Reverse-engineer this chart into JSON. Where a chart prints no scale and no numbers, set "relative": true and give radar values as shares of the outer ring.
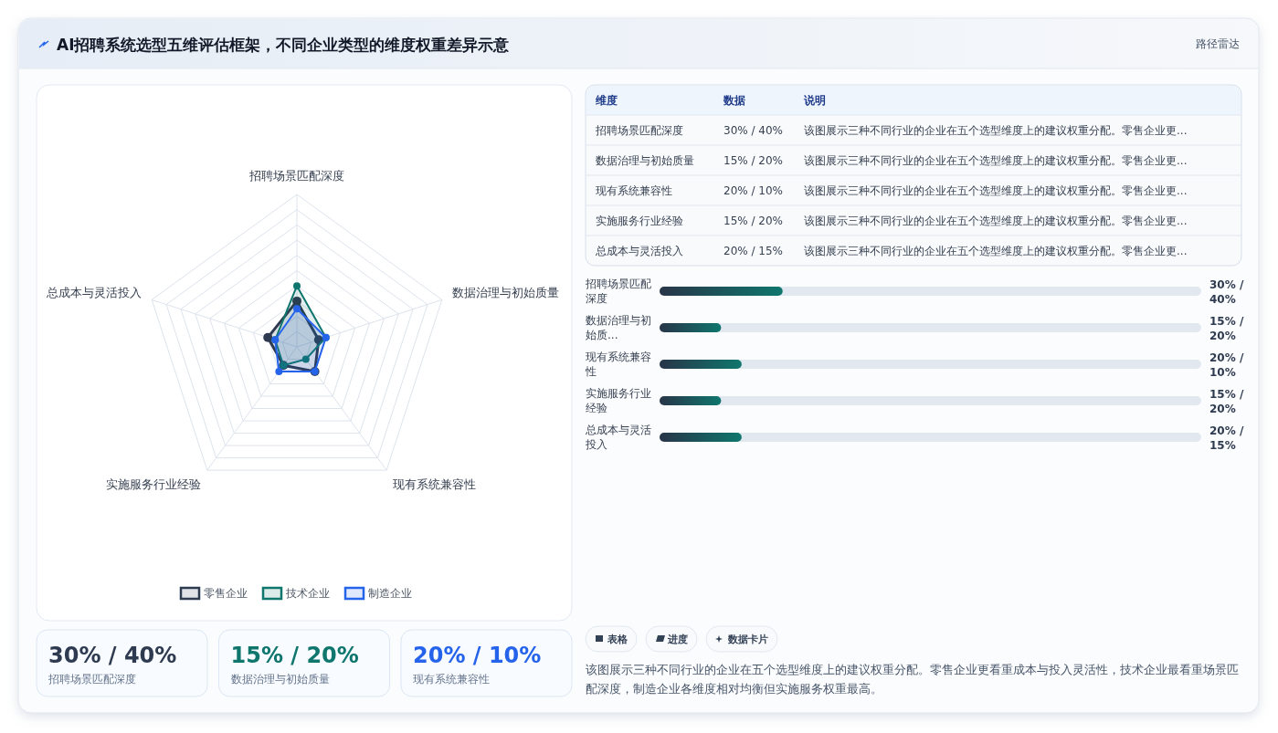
{
  "chart_data": [
    {
      "type": "other",
      "title": "AI招聘系统选型五维评估框架，不同企业类型的维度权重差异示意",
      "annotations": [
        "路径雷达"
      ]
    },
    {
      "type": "radar",
      "categories": [
        "招聘场景匹配深度",
        "数据治理与初始质量",
        "现有系统兼容性",
        "实施服务行业经验",
        "总成本与灵活投入"
      ],
      "relative": true,
      "legend": "bottom",
      "marker": "circle",
      "series": [
        {
          "name": "零售企业",
          "color": "#2d3a4f",
          "values": [
            0.3,
            0.15,
            0.2,
            0.15,
            0.2
          ]
        },
        {
          "name": "技术企业",
          "color": "#0f766e",
          "values": [
            0.4,
            0.2,
            0.1,
            0.15,
            0.15
          ]
        },
        {
          "name": "制造企业",
          "color": "#2563eb",
          "values": [
            0.25,
            0.2,
            0.2,
            0.2,
            0.15
          ]
        }
      ]
    },
    {
      "type": "other",
      "categories": [
        "招聘场景匹配深度",
        "数据治理与初始质量",
        "现有系统兼容性",
        "实施服务行业经验",
        "总成本与灵活投入"
      ],
      "value_labels": [
        "30% / 40%",
        "15% / 20%",
        "20% / 10%",
        "15% / 20%",
        "20% / 15%"
      ],
      "annotations": [
        "维度",
        "数据",
        "说明",
        "该图展示三种不同行业的企业在五个选型维度上的建议权重分配。零售企业更...",
        "该图展示三种不同行业的企业在五个选型维度上的建议权重分配。零售企业更...",
        "该图展示三种不同行业的企业在五个选型维度上的建议权重分配。零售企业更...",
        "该图展示三种不同行业的企业在五个选型维度上的建议权重分配。零售企业更...",
        "该图展示三种不同行业的企业在五个选型维度上的建议权重分配。零售企业更..."
      ]
    },
    {
      "type": "bar",
      "orientation": "horizontal",
      "categories": [
        "招聘场景匹配深度",
        "数据治理与初始质...",
        "现有系统兼容性",
        "实施服务行业经验",
        "总成本与灵活投入"
      ],
      "values": [
        30,
        15,
        20,
        15,
        20
      ],
      "xlim": [
        0,
        132
      ],
      "value_labels": [
        "30% / 40%",
        "15% / 20%",
        "20% / 10%",
        "15% / 20%",
        "20% / 15%"
      ],
      "color": "#0f766e"
    },
    {
      "type": "other",
      "categories": [
        "招聘场景匹配深度",
        "数据治理与初始质量",
        "现有系统兼容性"
      ],
      "value_labels": [
        "30% / 40%",
        "15% / 20%",
        "20% / 10%"
      ]
    },
    {
      "type": "other",
      "annotations": [
        "表格",
        "进度",
        "数据卡片",
        "该图展示三种不同行业的企业在五个选型维度上的建议权重分配。零售企业更看重成本与投入灵活性，技术企业最看重场景匹配深度，制造企业各维度相对均衡但实施服务权重最高。"
      ]
    }
  ]
}
